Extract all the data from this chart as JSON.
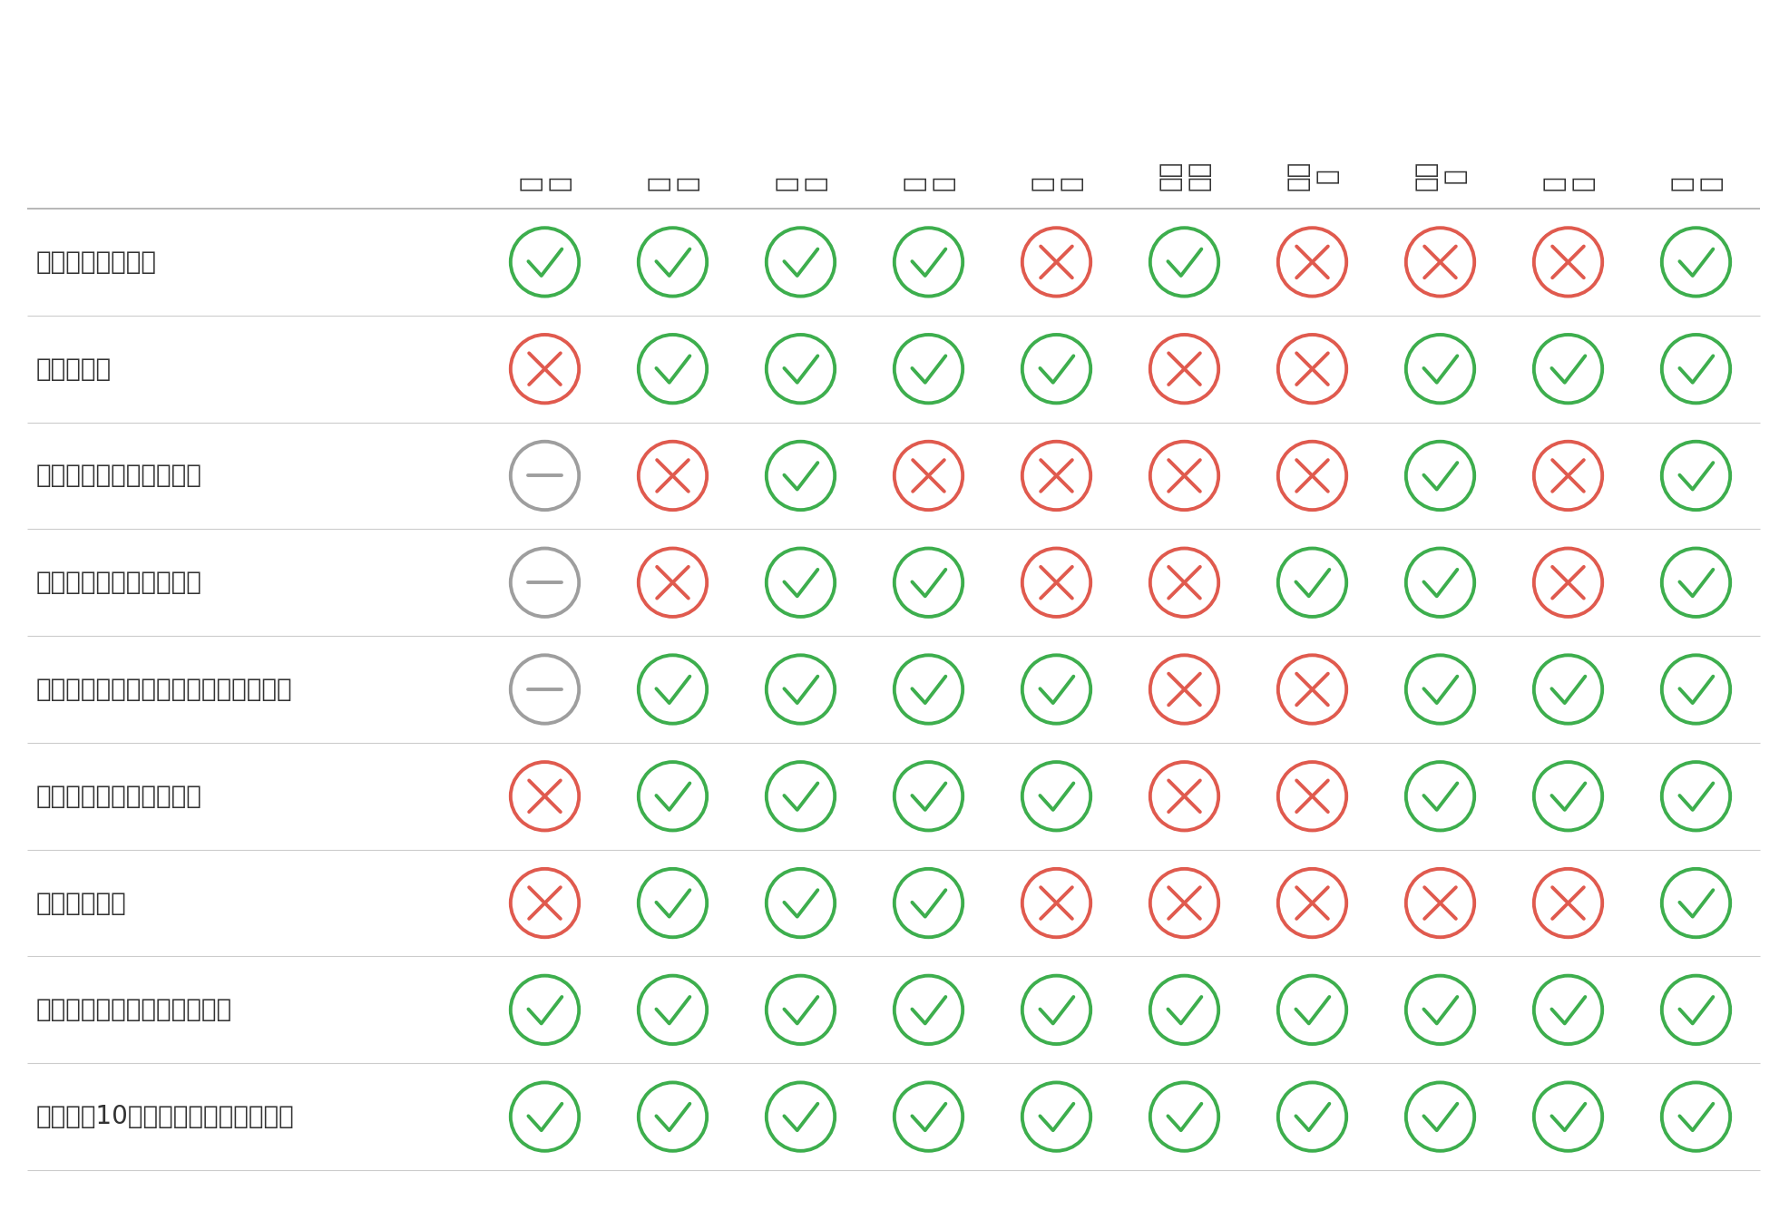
{
  "columns": [
    "中国",
    "韩国",
    "印度",
    "印尼",
    "台湾",
    "马来西亚",
    "菲律宾",
    "新加坡",
    "泰国",
    "日本"
  ],
  "col_labels_lines": [
    [
      "中",
      "国"
    ],
    [
      "韩",
      "国"
    ],
    [
      "印",
      "度"
    ],
    [
      "印",
      "尼"
    ],
    [
      "台",
      "湾"
    ],
    [
      "马来",
      "西亚"
    ],
    [
      "菲律",
      "宾"
    ],
    [
      "新加",
      "坡"
    ],
    [
      "泰",
      "国"
    ],
    [
      "日",
      "本"
    ]
  ],
  "rows": [
    "整体消费物价指数",
    "经常帐结余",
    "整体外债占外汇储备比率",
    "短期外债占外汇储备比率",
    "短期外债加经常帐赤字占外汇储备比率",
    "外汇储备占每月进口比率",
    "实际政策利率",
    "相对美国的实际政策利率差值",
    "相对美国10年期债券实际收益率差值"
  ],
  "data": [
    [
      "green",
      "green",
      "green",
      "green",
      "red",
      "green",
      "red",
      "red",
      "red",
      "green"
    ],
    [
      "red",
      "green",
      "green",
      "green",
      "green",
      "red",
      "red",
      "green",
      "green",
      "green"
    ],
    [
      "gray",
      "red",
      "green",
      "red",
      "red",
      "red",
      "red",
      "green",
      "red",
      "green"
    ],
    [
      "gray",
      "red",
      "green",
      "green",
      "red",
      "red",
      "green",
      "green",
      "red",
      "green"
    ],
    [
      "gray",
      "green",
      "green",
      "green",
      "green",
      "red",
      "red",
      "green",
      "green",
      "green"
    ],
    [
      "red",
      "green",
      "green",
      "green",
      "green",
      "red",
      "red",
      "green",
      "green",
      "green"
    ],
    [
      "red",
      "green",
      "green",
      "green",
      "red",
      "red",
      "red",
      "red",
      "red",
      "green"
    ],
    [
      "green",
      "green",
      "green",
      "green",
      "green",
      "green",
      "green",
      "green",
      "green",
      "green"
    ],
    [
      "green",
      "green",
      "green",
      "green",
      "green",
      "green",
      "green",
      "green",
      "green",
      "green"
    ]
  ],
  "green_color": "#3dae4d",
  "red_color": "#e05a4e",
  "gray_color": "#9e9e9e",
  "background_color": "#ffffff",
  "text_color": "#333333",
  "row_label_fontsize": 20,
  "col_label_fontsize": 20,
  "line_color": "#cccccc"
}
